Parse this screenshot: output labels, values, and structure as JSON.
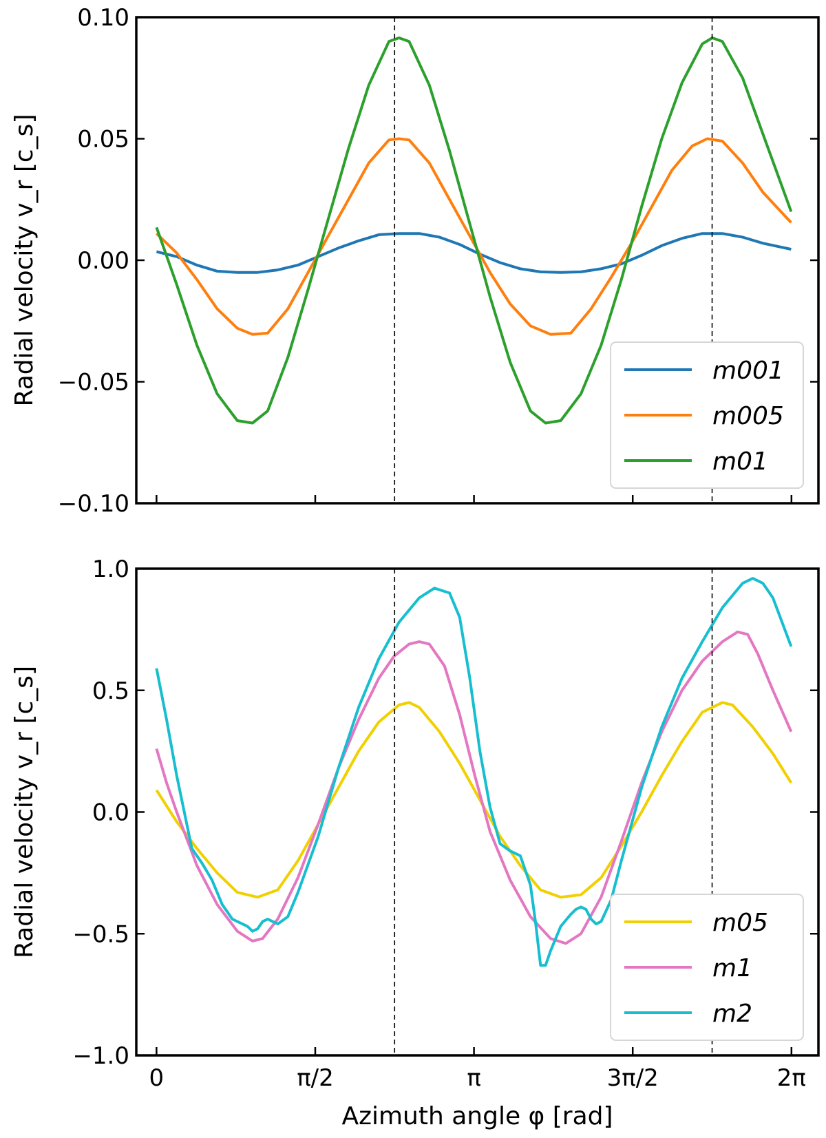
{
  "chart_data": [
    {
      "type": "line",
      "ylabel": "Radial velocity v_r [c_s]",
      "xlabel": "",
      "xlim": [
        -0.2,
        6.55
      ],
      "ylim": [
        -0.1,
        0.1
      ],
      "yticks": [
        -0.1,
        -0.05,
        0.0,
        0.05,
        0.1
      ],
      "ytick_labels": [
        "−0.10",
        "−0.05",
        "0.00",
        "0.05",
        "0.10"
      ],
      "xticks": [
        0,
        1.5708,
        3.1416,
        4.7124,
        6.2832
      ],
      "xtick_labels": [],
      "vlines": [
        2.356,
        5.498
      ],
      "legend_position": "lower-right",
      "series": [
        {
          "name": "m001",
          "color": "#1f77b4",
          "points": [
            [
              0,
              0.0035
            ],
            [
              0.2,
              0.0015
            ],
            [
              0.4,
              -0.002
            ],
            [
              0.6,
              -0.0045
            ],
            [
              0.8,
              -0.005
            ],
            [
              1.0,
              -0.005
            ],
            [
              1.2,
              -0.004
            ],
            [
              1.4,
              -0.002
            ],
            [
              1.6,
              0.0015
            ],
            [
              1.8,
              0.005
            ],
            [
              2.0,
              0.008
            ],
            [
              2.2,
              0.0105
            ],
            [
              2.4,
              0.011
            ],
            [
              2.6,
              0.011
            ],
            [
              2.8,
              0.0095
            ],
            [
              3.0,
              0.0065
            ],
            [
              3.2,
              0.0025
            ],
            [
              3.4,
              -0.001
            ],
            [
              3.6,
              -0.0035
            ],
            [
              3.8,
              -0.0048
            ],
            [
              4.0,
              -0.005
            ],
            [
              4.2,
              -0.0048
            ],
            [
              4.4,
              -0.0035
            ],
            [
              4.6,
              -0.0015
            ],
            [
              4.8,
              0.002
            ],
            [
              5.0,
              0.006
            ],
            [
              5.2,
              0.009
            ],
            [
              5.4,
              0.011
            ],
            [
              5.6,
              0.011
            ],
            [
              5.8,
              0.0095
            ],
            [
              6.0,
              0.007
            ],
            [
              6.28,
              0.0045
            ]
          ]
        },
        {
          "name": "m005",
          "color": "#ff7f0e",
          "points": [
            [
              0,
              0.011
            ],
            [
              0.2,
              0.003
            ],
            [
              0.4,
              -0.008
            ],
            [
              0.6,
              -0.02
            ],
            [
              0.8,
              -0.028
            ],
            [
              0.95,
              -0.0305
            ],
            [
              1.1,
              -0.03
            ],
            [
              1.3,
              -0.02
            ],
            [
              1.5,
              -0.005
            ],
            [
              1.7,
              0.01
            ],
            [
              1.9,
              0.025
            ],
            [
              2.1,
              0.04
            ],
            [
              2.3,
              0.0495
            ],
            [
              2.4,
              0.05
            ],
            [
              2.5,
              0.0495
            ],
            [
              2.7,
              0.04
            ],
            [
              2.9,
              0.025
            ],
            [
              3.1,
              0.01
            ],
            [
              3.3,
              -0.005
            ],
            [
              3.5,
              -0.018
            ],
            [
              3.7,
              -0.027
            ],
            [
              3.9,
              -0.0305
            ],
            [
              4.1,
              -0.03
            ],
            [
              4.3,
              -0.02
            ],
            [
              4.5,
              -0.007
            ],
            [
              4.7,
              0.007
            ],
            [
              4.9,
              0.022
            ],
            [
              5.1,
              0.037
            ],
            [
              5.3,
              0.047
            ],
            [
              5.45,
              0.05
            ],
            [
              5.6,
              0.049
            ],
            [
              5.8,
              0.04
            ],
            [
              6.0,
              0.028
            ],
            [
              6.28,
              0.0155
            ]
          ]
        },
        {
          "name": "m01",
          "color": "#2ca02c",
          "points": [
            [
              0,
              0.0135
            ],
            [
              0.2,
              -0.01
            ],
            [
              0.4,
              -0.035
            ],
            [
              0.6,
              -0.055
            ],
            [
              0.8,
              -0.066
            ],
            [
              0.95,
              -0.067
            ],
            [
              1.1,
              -0.062
            ],
            [
              1.3,
              -0.04
            ],
            [
              1.5,
              -0.012
            ],
            [
              1.7,
              0.017
            ],
            [
              1.9,
              0.046
            ],
            [
              2.1,
              0.072
            ],
            [
              2.3,
              0.09
            ],
            [
              2.4,
              0.0915
            ],
            [
              2.5,
              0.09
            ],
            [
              2.7,
              0.072
            ],
            [
              2.9,
              0.045
            ],
            [
              3.1,
              0.015
            ],
            [
              3.3,
              -0.015
            ],
            [
              3.5,
              -0.042
            ],
            [
              3.7,
              -0.062
            ],
            [
              3.85,
              -0.067
            ],
            [
              4.0,
              -0.066
            ],
            [
              4.2,
              -0.055
            ],
            [
              4.4,
              -0.035
            ],
            [
              4.6,
              -0.008
            ],
            [
              4.8,
              0.022
            ],
            [
              5.0,
              0.05
            ],
            [
              5.2,
              0.073
            ],
            [
              5.4,
              0.089
            ],
            [
              5.5,
              0.0915
            ],
            [
              5.6,
              0.09
            ],
            [
              5.8,
              0.075
            ],
            [
              6.0,
              0.052
            ],
            [
              6.28,
              0.02
            ]
          ]
        }
      ]
    },
    {
      "type": "line",
      "ylabel": "Radial velocity v_r [c_s]",
      "xlabel": "Azimuth angle φ [rad]",
      "xlim": [
        -0.2,
        6.55
      ],
      "ylim": [
        -1.0,
        1.0
      ],
      "yticks": [
        -1.0,
        -0.5,
        0.0,
        0.5,
        1.0
      ],
      "ytick_labels": [
        "−1.0",
        "−0.5",
        "0.0",
        "0.5",
        "1.0"
      ],
      "xticks": [
        0,
        1.5708,
        3.1416,
        4.7124,
        6.2832
      ],
      "xtick_labels": [
        "0",
        "π/2",
        "π",
        "3π/2",
        "2π"
      ],
      "vlines": [
        2.356,
        5.498
      ],
      "legend_position": "lower-right",
      "series": [
        {
          "name": "m05",
          "color": "#f0d000",
          "points": [
            [
              0,
              0.09
            ],
            [
              0.2,
              -0.04
            ],
            [
              0.4,
              -0.15
            ],
            [
              0.6,
              -0.25
            ],
            [
              0.8,
              -0.33
            ],
            [
              1.0,
              -0.35
            ],
            [
              1.2,
              -0.32
            ],
            [
              1.4,
              -0.2
            ],
            [
              1.6,
              -0.05
            ],
            [
              1.8,
              0.1
            ],
            [
              2.0,
              0.25
            ],
            [
              2.2,
              0.37
            ],
            [
              2.4,
              0.44
            ],
            [
              2.5,
              0.45
            ],
            [
              2.6,
              0.43
            ],
            [
              2.8,
              0.33
            ],
            [
              3.0,
              0.2
            ],
            [
              3.2,
              0.05
            ],
            [
              3.4,
              -0.1
            ],
            [
              3.6,
              -0.22
            ],
            [
              3.8,
              -0.32
            ],
            [
              4.0,
              -0.35
            ],
            [
              4.2,
              -0.34
            ],
            [
              4.4,
              -0.27
            ],
            [
              4.6,
              -0.14
            ],
            [
              4.8,
              0.0
            ],
            [
              5.0,
              0.15
            ],
            [
              5.2,
              0.29
            ],
            [
              5.4,
              0.41
            ],
            [
              5.6,
              0.45
            ],
            [
              5.7,
              0.44
            ],
            [
              5.9,
              0.35
            ],
            [
              6.1,
              0.24
            ],
            [
              6.28,
              0.12
            ]
          ]
        },
        {
          "name": "m1",
          "color": "#e377c2",
          "points": [
            [
              0,
              0.26
            ],
            [
              0.1,
              0.12
            ],
            [
              0.2,
              0.0
            ],
            [
              0.4,
              -0.22
            ],
            [
              0.6,
              -0.38
            ],
            [
              0.8,
              -0.49
            ],
            [
              0.95,
              -0.53
            ],
            [
              1.05,
              -0.52
            ],
            [
              1.2,
              -0.44
            ],
            [
              1.4,
              -0.27
            ],
            [
              1.6,
              -0.05
            ],
            [
              1.8,
              0.18
            ],
            [
              2.0,
              0.38
            ],
            [
              2.2,
              0.55
            ],
            [
              2.35,
              0.64
            ],
            [
              2.5,
              0.69
            ],
            [
              2.6,
              0.7
            ],
            [
              2.7,
              0.69
            ],
            [
              2.85,
              0.6
            ],
            [
              3.0,
              0.4
            ],
            [
              3.15,
              0.15
            ],
            [
              3.3,
              -0.08
            ],
            [
              3.5,
              -0.28
            ],
            [
              3.7,
              -0.43
            ],
            [
              3.9,
              -0.52
            ],
            [
              4.05,
              -0.54
            ],
            [
              4.2,
              -0.5
            ],
            [
              4.4,
              -0.35
            ],
            [
              4.6,
              -0.12
            ],
            [
              4.8,
              0.12
            ],
            [
              5.0,
              0.33
            ],
            [
              5.2,
              0.5
            ],
            [
              5.4,
              0.62
            ],
            [
              5.6,
              0.7
            ],
            [
              5.75,
              0.74
            ],
            [
              5.85,
              0.73
            ],
            [
              5.95,
              0.65
            ],
            [
              6.1,
              0.5
            ],
            [
              6.28,
              0.33
            ]
          ]
        },
        {
          "name": "m2",
          "color": "#17becf",
          "points": [
            [
              0,
              0.59
            ],
            [
              0.1,
              0.38
            ],
            [
              0.2,
              0.15
            ],
            [
              0.3,
              -0.05
            ],
            [
              0.35,
              -0.15
            ],
            [
              0.45,
              -0.21
            ],
            [
              0.55,
              -0.28
            ],
            [
              0.65,
              -0.38
            ],
            [
              0.75,
              -0.44
            ],
            [
              0.85,
              -0.46
            ],
            [
              0.9,
              -0.47
            ],
            [
              0.95,
              -0.49
            ],
            [
              1.0,
              -0.48
            ],
            [
              1.05,
              -0.45
            ],
            [
              1.1,
              -0.44
            ],
            [
              1.15,
              -0.45
            ],
            [
              1.2,
              -0.46
            ],
            [
              1.3,
              -0.43
            ],
            [
              1.4,
              -0.33
            ],
            [
              1.6,
              -0.1
            ],
            [
              1.8,
              0.18
            ],
            [
              2.0,
              0.43
            ],
            [
              2.2,
              0.63
            ],
            [
              2.4,
              0.78
            ],
            [
              2.6,
              0.88
            ],
            [
              2.75,
              0.92
            ],
            [
              2.9,
              0.9
            ],
            [
              3.0,
              0.8
            ],
            [
              3.1,
              0.55
            ],
            [
              3.2,
              0.25
            ],
            [
              3.3,
              0.02
            ],
            [
              3.4,
              -0.13
            ],
            [
              3.5,
              -0.16
            ],
            [
              3.6,
              -0.18
            ],
            [
              3.7,
              -0.3
            ],
            [
              3.75,
              -0.45
            ],
            [
              3.8,
              -0.63
            ],
            [
              3.85,
              -0.63
            ],
            [
              3.9,
              -0.57
            ],
            [
              4.0,
              -0.47
            ],
            [
              4.1,
              -0.42
            ],
            [
              4.15,
              -0.4
            ],
            [
              4.2,
              -0.39
            ],
            [
              4.25,
              -0.4
            ],
            [
              4.3,
              -0.44
            ],
            [
              4.35,
              -0.46
            ],
            [
              4.4,
              -0.45
            ],
            [
              4.5,
              -0.36
            ],
            [
              4.6,
              -0.2
            ],
            [
              4.8,
              0.1
            ],
            [
              5.0,
              0.35
            ],
            [
              5.2,
              0.55
            ],
            [
              5.4,
              0.7
            ],
            [
              5.6,
              0.84
            ],
            [
              5.8,
              0.94
            ],
            [
              5.9,
              0.96
            ],
            [
              6.0,
              0.94
            ],
            [
              6.1,
              0.88
            ],
            [
              6.28,
              0.68
            ]
          ]
        }
      ]
    }
  ]
}
